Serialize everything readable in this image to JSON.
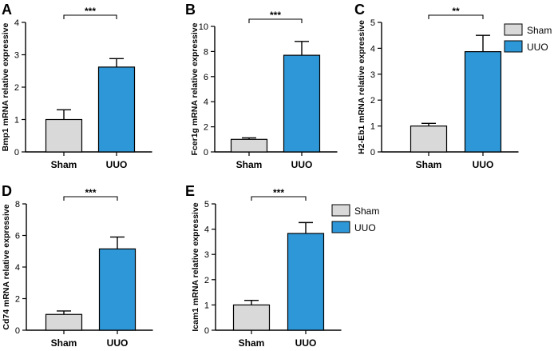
{
  "legend": [
    {
      "name": "Sham",
      "color": "#d9d9d9"
    },
    {
      "name": "UUO",
      "color": "#2e97d8"
    }
  ],
  "chart_data": [
    {
      "type": "bar",
      "panel": "A",
      "categories": [
        "Sham",
        "UUO"
      ],
      "values": [
        1.0,
        2.62
      ],
      "errors": [
        0.3,
        0.26
      ],
      "ylabel": "Bmp1 mRNA relative expressive",
      "ylim": [
        0,
        4
      ],
      "yticks": [
        0,
        1,
        2,
        3,
        4
      ],
      "significance": "***",
      "colors": [
        "#d9d9d9",
        "#2e97d8"
      ]
    },
    {
      "type": "bar",
      "panel": "B",
      "categories": [
        "Sham",
        "UUO"
      ],
      "values": [
        1.0,
        7.7
      ],
      "errors": [
        0.12,
        1.1
      ],
      "ylabel": "Fcer1g mRNA relative expressive",
      "ylim": [
        0,
        10
      ],
      "yticks": [
        0,
        2,
        4,
        6,
        8,
        10
      ],
      "significance": "***",
      "colors": [
        "#d9d9d9",
        "#2e97d8"
      ]
    },
    {
      "type": "bar",
      "panel": "C",
      "categories": [
        "Sham",
        "UUO"
      ],
      "values": [
        1.0,
        3.87
      ],
      "errors": [
        0.1,
        0.63
      ],
      "ylabel": "H2-Eb1 mRNA relative expressive",
      "ylim": [
        0,
        5
      ],
      "yticks": [
        0,
        1,
        2,
        3,
        4,
        5
      ],
      "significance": "**",
      "colors": [
        "#d9d9d9",
        "#2e97d8"
      ]
    },
    {
      "type": "bar",
      "panel": "D",
      "categories": [
        "Sham",
        "UUO"
      ],
      "values": [
        1.0,
        5.15
      ],
      "errors": [
        0.22,
        0.75
      ],
      "ylabel": "Cd74 mRNA relative expressive",
      "ylim": [
        0,
        8
      ],
      "yticks": [
        0,
        2,
        4,
        6,
        8
      ],
      "significance": "***",
      "colors": [
        "#d9d9d9",
        "#2e97d8"
      ]
    },
    {
      "type": "bar",
      "panel": "E",
      "categories": [
        "Sham",
        "UUO"
      ],
      "values": [
        1.0,
        3.83
      ],
      "errors": [
        0.18,
        0.43
      ],
      "ylabel": "Icam1 mRNA relative expressive",
      "ylim": [
        0,
        5
      ],
      "yticks": [
        0,
        1,
        2,
        3,
        4,
        5
      ],
      "significance": "***",
      "colors": [
        "#d9d9d9",
        "#2e97d8"
      ]
    }
  ]
}
